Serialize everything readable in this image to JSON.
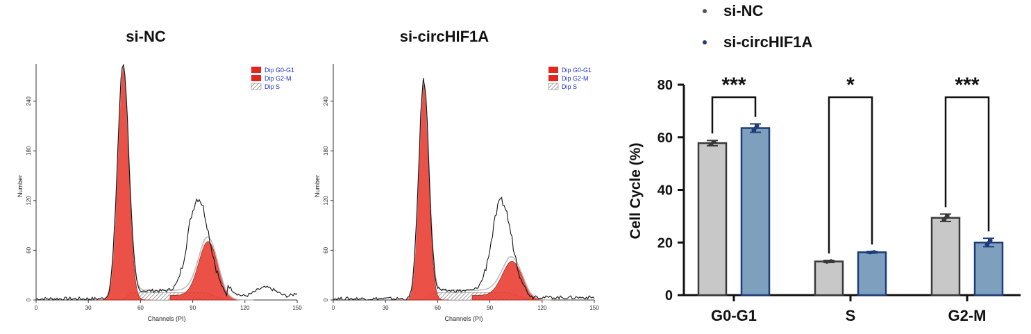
{
  "flow_panels": [
    {
      "title": "si-NC",
      "x_label": "Channels (PI)",
      "y_label": "Number",
      "x_ticks": [
        "0",
        "30",
        "60",
        "90",
        "120",
        "150"
      ],
      "y_ticks": [
        "0",
        "60",
        "120",
        "180",
        "240"
      ],
      "legend": [
        "Dip G0-G1",
        "Dip G2-M",
        "Dip S"
      ],
      "g1_peak": {
        "center": 50,
        "height": 282,
        "sigma": 3.2
      },
      "g2_peak": {
        "center": 99,
        "height": 66,
        "sigma": 5.5
      },
      "s_phase_level": 9,
      "measured_peak_right": 133
    },
    {
      "title": "si-circHIF1A",
      "x_label": "Channels (PI)",
      "y_label": "Number",
      "x_ticks": [
        "0",
        "30",
        "60",
        "90",
        "120",
        "150"
      ],
      "y_ticks": [
        "0",
        "60",
        "120",
        "180",
        "240"
      ],
      "legend": [
        "Dip G0-G1",
        "Dip G2-M",
        "Dip S"
      ],
      "g1_peak": {
        "center": 52,
        "height": 262,
        "sigma": 2.9
      },
      "g2_peak": {
        "center": 103,
        "height": 42,
        "sigma": 5.8
      },
      "s_phase_level": 9,
      "measured_peak_right": 122
    }
  ],
  "chart_data": {
    "type": "bar",
    "title": "",
    "xlabel": "",
    "ylabel": "Cell Cycle (%)",
    "ylim": [
      0,
      80
    ],
    "yticks": [
      "0",
      "20",
      "40",
      "60",
      "80"
    ],
    "categories": [
      "G0-G1",
      "S",
      "G2-M"
    ],
    "series": [
      {
        "name": "si-NC",
        "values": [
          57.8,
          12.8,
          29.4
        ],
        "error": [
          1.0,
          0.4,
          1.4
        ],
        "fill": "#c8c8c8",
        "stroke": "#3a3a3a"
      },
      {
        "name": "si-circHIF1A",
        "values": [
          63.5,
          16.3,
          20.0
        ],
        "error": [
          1.6,
          0.3,
          1.6
        ],
        "fill": "#7f9fbf",
        "stroke": "#1e3c78"
      }
    ],
    "significance": [
      "***",
      "*",
      "***"
    ],
    "legend_position": "top",
    "legend_markers": [
      "#555555",
      "#1e3c78"
    ]
  }
}
